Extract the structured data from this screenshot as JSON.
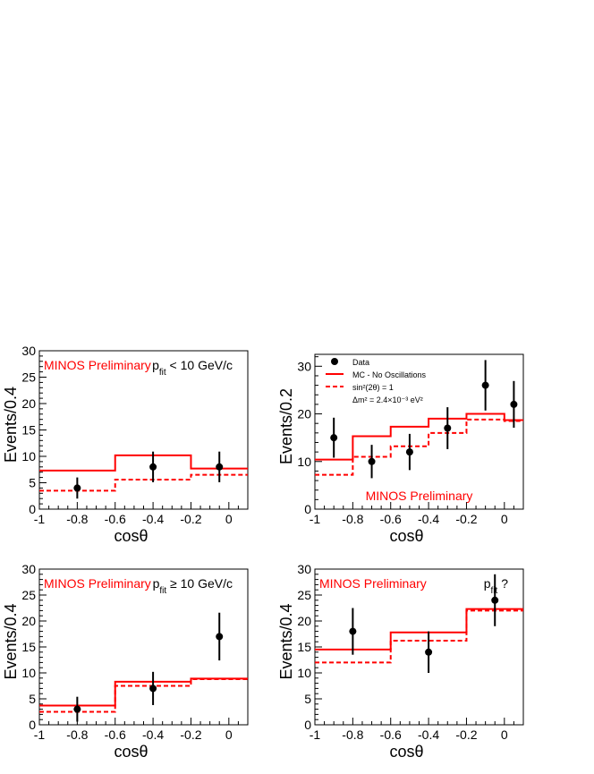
{
  "chart_data": [
    {
      "type": "histogram",
      "xlabel": "cosθ",
      "ylabel": "Events/0.4",
      "xlim": [
        -1.0,
        0.1
      ],
      "ylim": [
        0,
        30
      ],
      "xticks": [
        -1,
        -0.8,
        -0.6,
        -0.4,
        -0.2,
        0
      ],
      "yticks": [
        0,
        5,
        10,
        15,
        20,
        25,
        30
      ],
      "annotations": [
        {
          "text": "MINOS Preliminary",
          "color": "#ff0000",
          "loc": "top-left"
        },
        {
          "text": "p",
          "sub": "fit",
          "rest": " < 10 GeV/c",
          "color": "#000000",
          "loc": "top-right"
        }
      ],
      "series": [
        {
          "style": "solid-red",
          "edges": [
            -1.0,
            -0.6,
            -0.2,
            0.1
          ],
          "values": [
            7.3,
            10.2,
            7.7
          ]
        },
        {
          "style": "dashed-red",
          "edges": [
            -1.0,
            -0.6,
            -0.2,
            0.1
          ],
          "values": [
            3.5,
            5.6,
            6.5
          ]
        },
        {
          "style": "points",
          "x": [
            -0.8,
            -0.4,
            -0.05
          ],
          "y": [
            4,
            8,
            8
          ],
          "yerr": [
            2.0,
            2.9,
            2.9
          ]
        }
      ]
    },
    {
      "type": "histogram",
      "xlabel": "cosθ",
      "ylabel": "Events/0.2",
      "xlim": [
        -1.0,
        0.1
      ],
      "ylim": [
        0,
        32.5
      ],
      "xticks": [
        -1,
        -0.8,
        -0.6,
        -0.4,
        -0.2,
        0
      ],
      "yticks": [
        0,
        10,
        20,
        30
      ],
      "annotations": [
        {
          "text": "MINOS Preliminary",
          "color": "#ff0000",
          "loc": "bottom-center"
        }
      ],
      "legend": {
        "loc": "top-left",
        "entries": [
          {
            "style": "points",
            "label": "Data"
          },
          {
            "style": "solid-red",
            "label": "MC - No Oscillations"
          },
          {
            "style": "dashed-red",
            "label": "sin²(2θ) = 1"
          },
          {
            "style": "none",
            "label": "Δm² = 2.4×10⁻³ eV²"
          }
        ]
      },
      "series": [
        {
          "style": "solid-red",
          "edges": [
            -1.0,
            -0.8,
            -0.6,
            -0.4,
            -0.2,
            0.0,
            0.1
          ],
          "values": [
            10.4,
            15.3,
            17.3,
            19.0,
            20.0,
            18.7
          ]
        },
        {
          "style": "dashed-red",
          "edges": [
            -1.0,
            -0.8,
            -0.6,
            -0.4,
            -0.2,
            0.0,
            0.1
          ],
          "values": [
            7.2,
            11.0,
            13.2,
            16.0,
            18.8,
            18.5
          ]
        },
        {
          "style": "points",
          "x": [
            -0.9,
            -0.7,
            -0.5,
            -0.3,
            -0.1,
            0.05
          ],
          "y": [
            15,
            10,
            12,
            17,
            26,
            22
          ],
          "yerr": [
            4.2,
            3.5,
            3.8,
            4.4,
            5.3,
            4.9
          ]
        }
      ]
    },
    {
      "type": "histogram",
      "xlabel": "cosθ",
      "ylabel": "Events/0.4",
      "xlim": [
        -1.0,
        0.1
      ],
      "ylim": [
        0,
        30
      ],
      "xticks": [
        -1,
        -0.8,
        -0.6,
        -0.4,
        -0.2,
        0
      ],
      "yticks": [
        0,
        5,
        10,
        15,
        20,
        25,
        30
      ],
      "annotations": [
        {
          "text": "MINOS Preliminary",
          "color": "#ff0000",
          "loc": "top-left"
        },
        {
          "text": "p",
          "sub": "fit",
          "rest": " ≥ 10 GeV/c",
          "color": "#000000",
          "loc": "top-right"
        }
      ],
      "series": [
        {
          "style": "solid-red",
          "edges": [
            -1.0,
            -0.6,
            -0.2,
            0.1
          ],
          "values": [
            3.7,
            8.3,
            8.9
          ]
        },
        {
          "style": "dashed-red",
          "edges": [
            -1.0,
            -0.6,
            -0.2,
            0.1
          ],
          "values": [
            2.5,
            7.5,
            8.8
          ]
        },
        {
          "style": "points",
          "x": [
            -0.8,
            -0.4,
            -0.05
          ],
          "y": [
            3,
            7,
            17
          ],
          "yerr": [
            2.4,
            3.2,
            4.6
          ]
        }
      ]
    },
    {
      "type": "histogram",
      "xlabel": "cosθ",
      "ylabel": "Events/0.4",
      "xlim": [
        -1.0,
        0.1
      ],
      "ylim": [
        0,
        30
      ],
      "xticks": [
        -1,
        -0.8,
        -0.6,
        -0.4,
        -0.2,
        0
      ],
      "yticks": [
        0,
        5,
        10,
        15,
        20,
        25,
        30
      ],
      "annotations": [
        {
          "text": "MINOS Preliminary",
          "color": "#ff0000",
          "loc": "top-left"
        },
        {
          "text": "p",
          "sub": "fit",
          "rest": " ?",
          "color": "#000000",
          "loc": "top-right"
        }
      ],
      "series": [
        {
          "style": "solid-red",
          "edges": [
            -1.0,
            -0.6,
            -0.2,
            0.1
          ],
          "values": [
            14.5,
            17.8,
            22.3
          ]
        },
        {
          "style": "dashed-red",
          "edges": [
            -1.0,
            -0.6,
            -0.2,
            0.1
          ],
          "values": [
            12.0,
            16.2,
            22.0
          ]
        },
        {
          "style": "points",
          "x": [
            -0.8,
            -0.4,
            -0.05
          ],
          "y": [
            18,
            14,
            24
          ],
          "yerr": [
            4.5,
            4.0,
            5.0
          ]
        }
      ]
    }
  ]
}
